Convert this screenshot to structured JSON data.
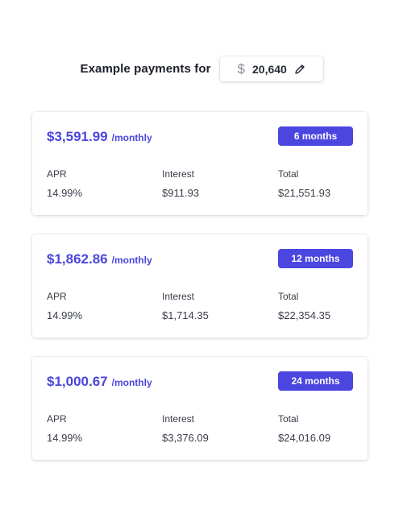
{
  "header": {
    "label": "Example payments for",
    "currency_symbol": "$",
    "amount": "20,640",
    "edit_icon": "pencil-icon"
  },
  "plans": [
    {
      "monthly_amount": "$3,591.99",
      "monthly_unit": "/monthly",
      "term": "6 months",
      "apr_label": "APR",
      "apr": "14.99%",
      "interest_label": "Interest",
      "interest": "$911.93",
      "total_label": "Total",
      "total": "$21,551.93"
    },
    {
      "monthly_amount": "$1,862.86",
      "monthly_unit": "/monthly",
      "term": "12 months",
      "apr_label": "APR",
      "apr": "14.99%",
      "interest_label": "Interest",
      "interest": "$1,714.35",
      "total_label": "Total",
      "total": "$22,354.35"
    },
    {
      "monthly_amount": "$1,000.67",
      "monthly_unit": "/monthly",
      "term": "24 months",
      "apr_label": "APR",
      "apr": "14.99%",
      "interest_label": "Interest",
      "interest": "$3,376.09",
      "total_label": "Total",
      "total": "$24,016.09"
    }
  ],
  "colors": {
    "accent": "#4b46db",
    "badge_bg": "#4b46e0",
    "text": "#3a3e49"
  }
}
